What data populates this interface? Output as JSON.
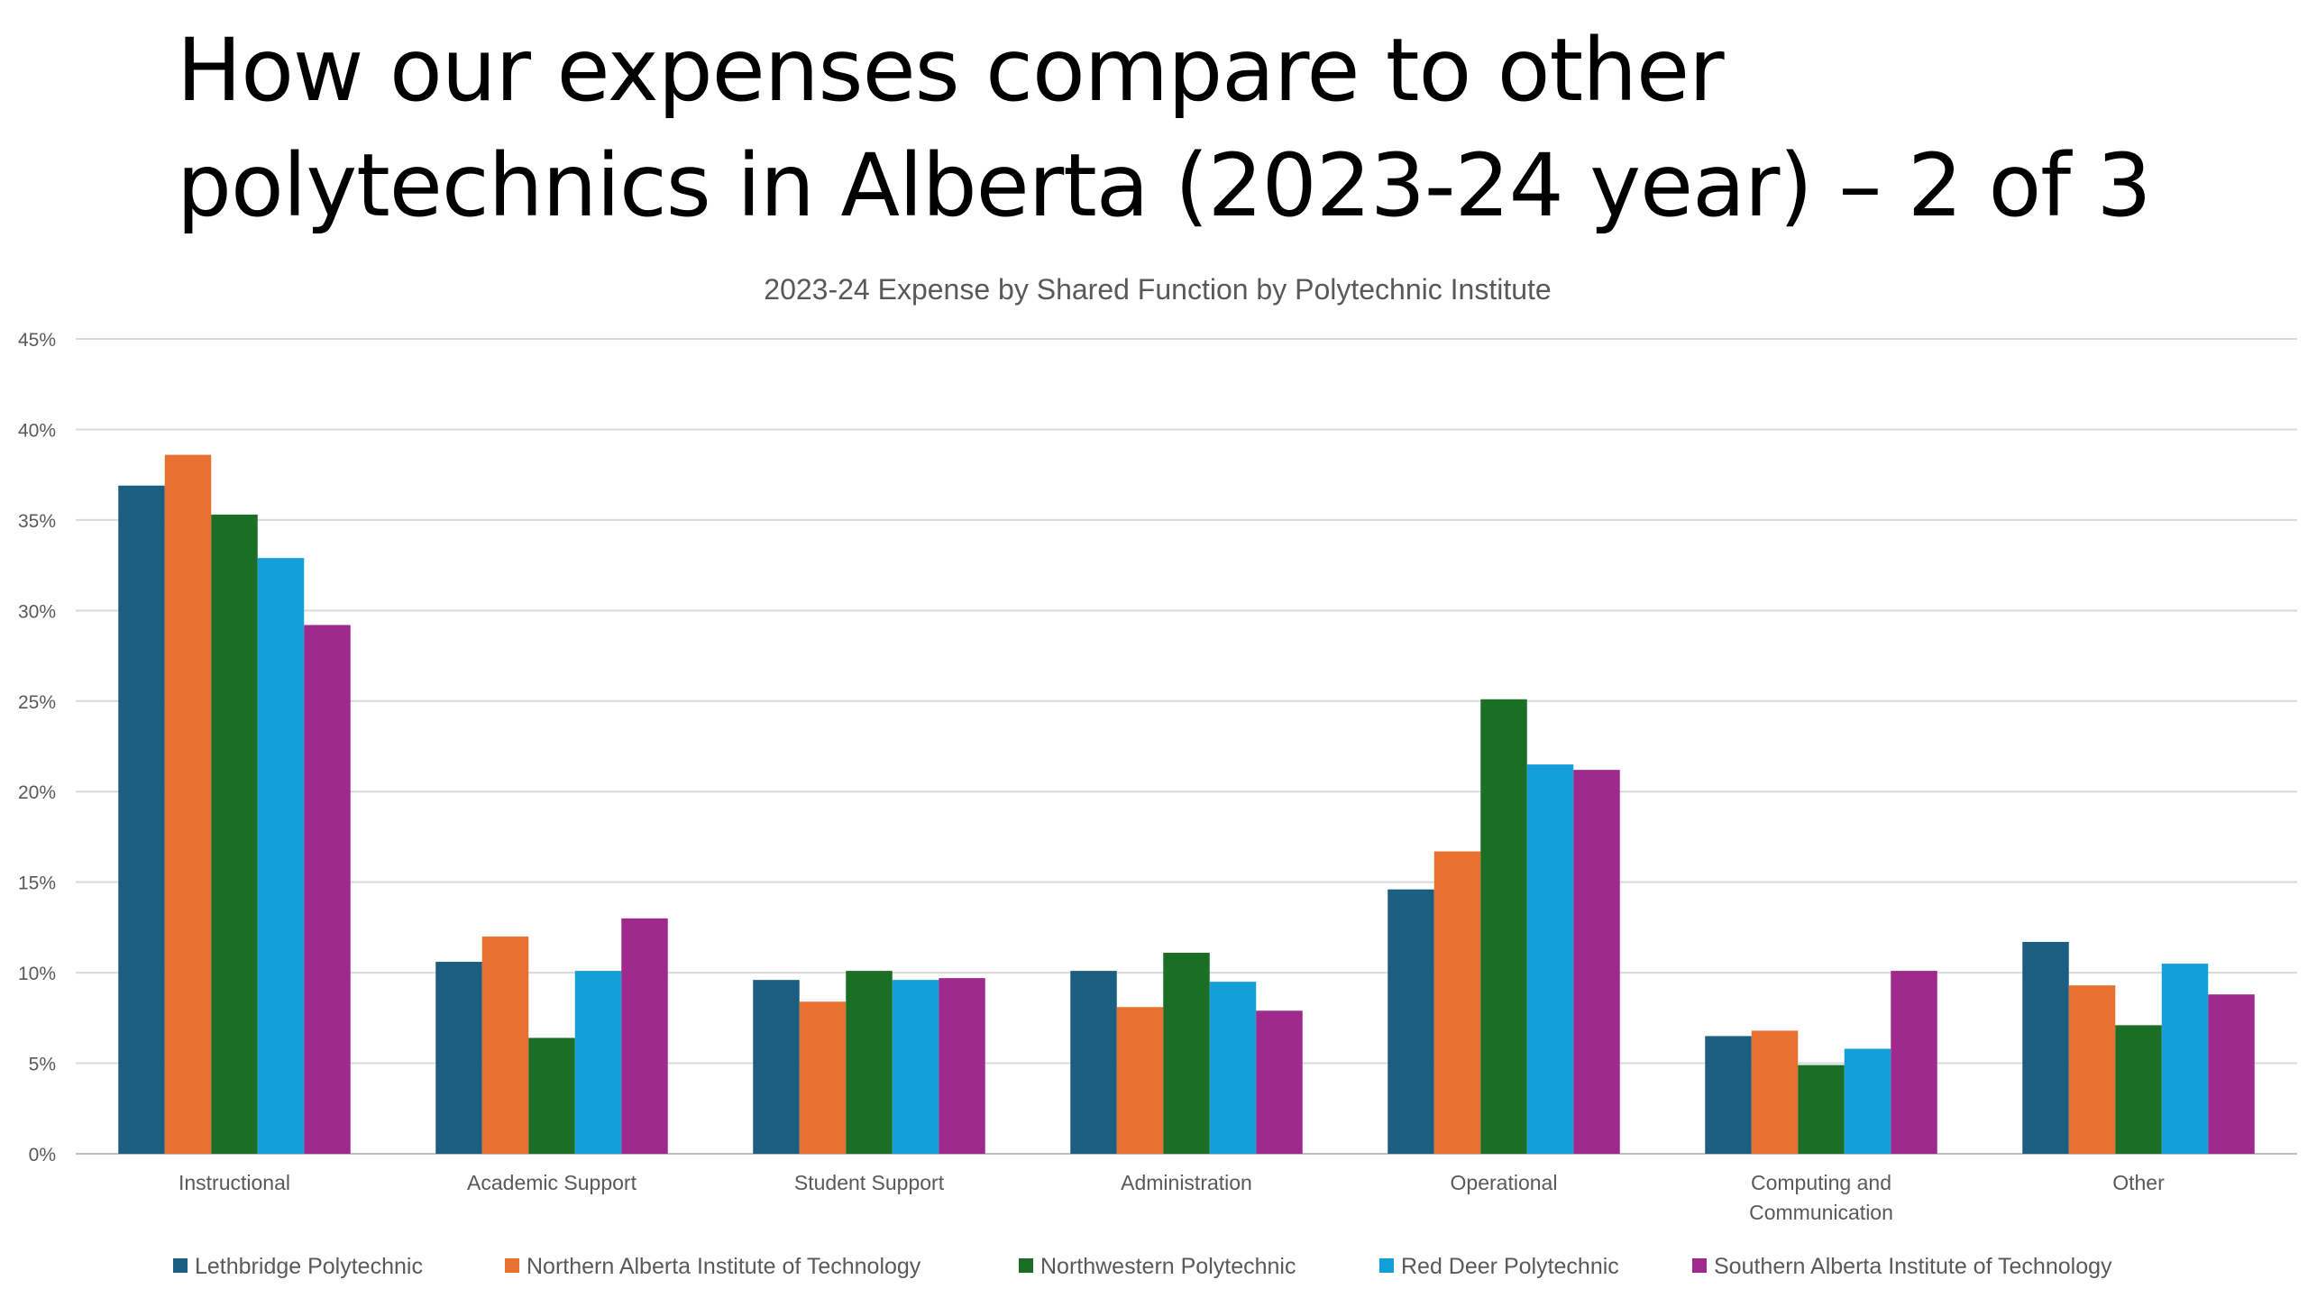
{
  "slide": {
    "title_line1": "How our expenses compare to other",
    "title_line2": "polytechnics in Alberta (2023-24 year) – 2 of 3"
  },
  "chart_data": {
    "type": "bar",
    "title": "2023-24 Expense by Shared Function by Polytechnic Institute",
    "xlabel": "",
    "ylabel": "",
    "ylim": [
      0,
      45
    ],
    "y_ticks": [
      "0%",
      "5%",
      "10%",
      "15%",
      "20%",
      "25%",
      "30%",
      "35%",
      "40%",
      "45%"
    ],
    "y_tick_values": [
      0,
      5,
      10,
      15,
      20,
      25,
      30,
      35,
      40,
      45
    ],
    "grid": true,
    "legend_position": "bottom",
    "categories": [
      [
        "Instructional"
      ],
      [
        "Academic Support"
      ],
      [
        "Student Support"
      ],
      [
        "Administration"
      ],
      [
        "Operational"
      ],
      [
        "Computing and",
        "Communication"
      ],
      [
        "Other"
      ]
    ],
    "series": [
      {
        "name": "Lethbridge Polytechnic",
        "color": "#1b5e80",
        "values": [
          36.9,
          10.6,
          9.6,
          10.1,
          14.6,
          6.5,
          11.7
        ]
      },
      {
        "name": "Northern Alberta Institute of Technology",
        "color": "#e87131",
        "values": [
          38.6,
          12.0,
          8.4,
          8.1,
          16.7,
          6.8,
          9.3
        ]
      },
      {
        "name": "Northwestern Polytechnic",
        "color": "#1c6e26",
        "values": [
          35.3,
          6.4,
          10.1,
          11.1,
          25.1,
          4.9,
          7.1
        ]
      },
      {
        "name": "Red Deer Polytechnic",
        "color": "#149fd8",
        "values": [
          32.9,
          10.1,
          9.6,
          9.5,
          21.5,
          5.8,
          10.5
        ]
      },
      {
        "name": "Southern Alberta Institute of Technology",
        "color": "#a0298e",
        "values": [
          29.2,
          13.0,
          9.7,
          7.9,
          21.2,
          10.1,
          8.8
        ]
      }
    ]
  }
}
